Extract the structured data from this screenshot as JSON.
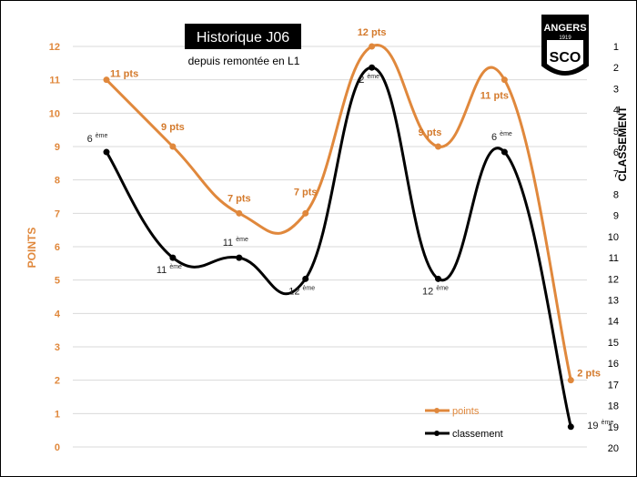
{
  "chart_data": {
    "type": "line",
    "title": "Historique J06",
    "subtitle": "depuis remontée en L1",
    "ylabel_left": "POINTS",
    "ylabel_right": "CLASSEMENT",
    "logo_text": [
      "ANGERS",
      "SCO",
      "1919"
    ],
    "points_axis": {
      "min": 0,
      "max": 12,
      "ticks": [
        "0",
        "1",
        "2",
        "3",
        "4",
        "5",
        "6",
        "7",
        "8",
        "9",
        "10",
        "11",
        "12"
      ]
    },
    "rank_axis": {
      "min": 1,
      "max": 20,
      "ticks": [
        "1",
        "2",
        "3",
        "4",
        "5",
        "6",
        "7",
        "8",
        "9",
        "10",
        "11",
        "12",
        "13",
        "14",
        "15",
        "16",
        "17",
        "18",
        "19",
        "20"
      ]
    },
    "grid": true,
    "legend_position": "bottom-right",
    "colors": {
      "points": "#e0883c",
      "classement": "#000000",
      "point_label": "#d47a2c",
      "axis_text": "#e0883c",
      "grid": "#d9d9d9"
    },
    "series": [
      {
        "name": "points",
        "values": [
          11,
          9,
          7,
          7,
          12,
          9,
          11,
          2
        ],
        "labels": [
          "11 pts",
          "9 pts",
          "7 pts",
          "7 pts",
          "12 pts",
          "9 pts",
          "11 pts",
          "2 pts"
        ]
      },
      {
        "name": "classement",
        "values": [
          6,
          11,
          11,
          12,
          2,
          12,
          6,
          19
        ],
        "labels": [
          "6",
          "11",
          "11",
          "12",
          "2",
          "12",
          "6",
          "19"
        ],
        "label_suffix": "ème"
      }
    ]
  }
}
